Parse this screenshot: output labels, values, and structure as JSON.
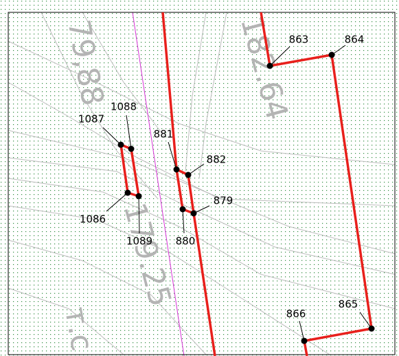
{
  "map": {
    "background_labels": [
      "79,88",
      "182.64",
      "179.25",
      "т.с"
    ],
    "points": [
      {
        "label": "863"
      },
      {
        "label": "864"
      },
      {
        "label": "865"
      },
      {
        "label": "866"
      },
      {
        "label": "881"
      },
      {
        "label": "882"
      },
      {
        "label": "879"
      },
      {
        "label": "880"
      },
      {
        "label": "1087"
      },
      {
        "label": "1088"
      },
      {
        "label": "1086"
      },
      {
        "label": "1089"
      }
    ]
  }
}
